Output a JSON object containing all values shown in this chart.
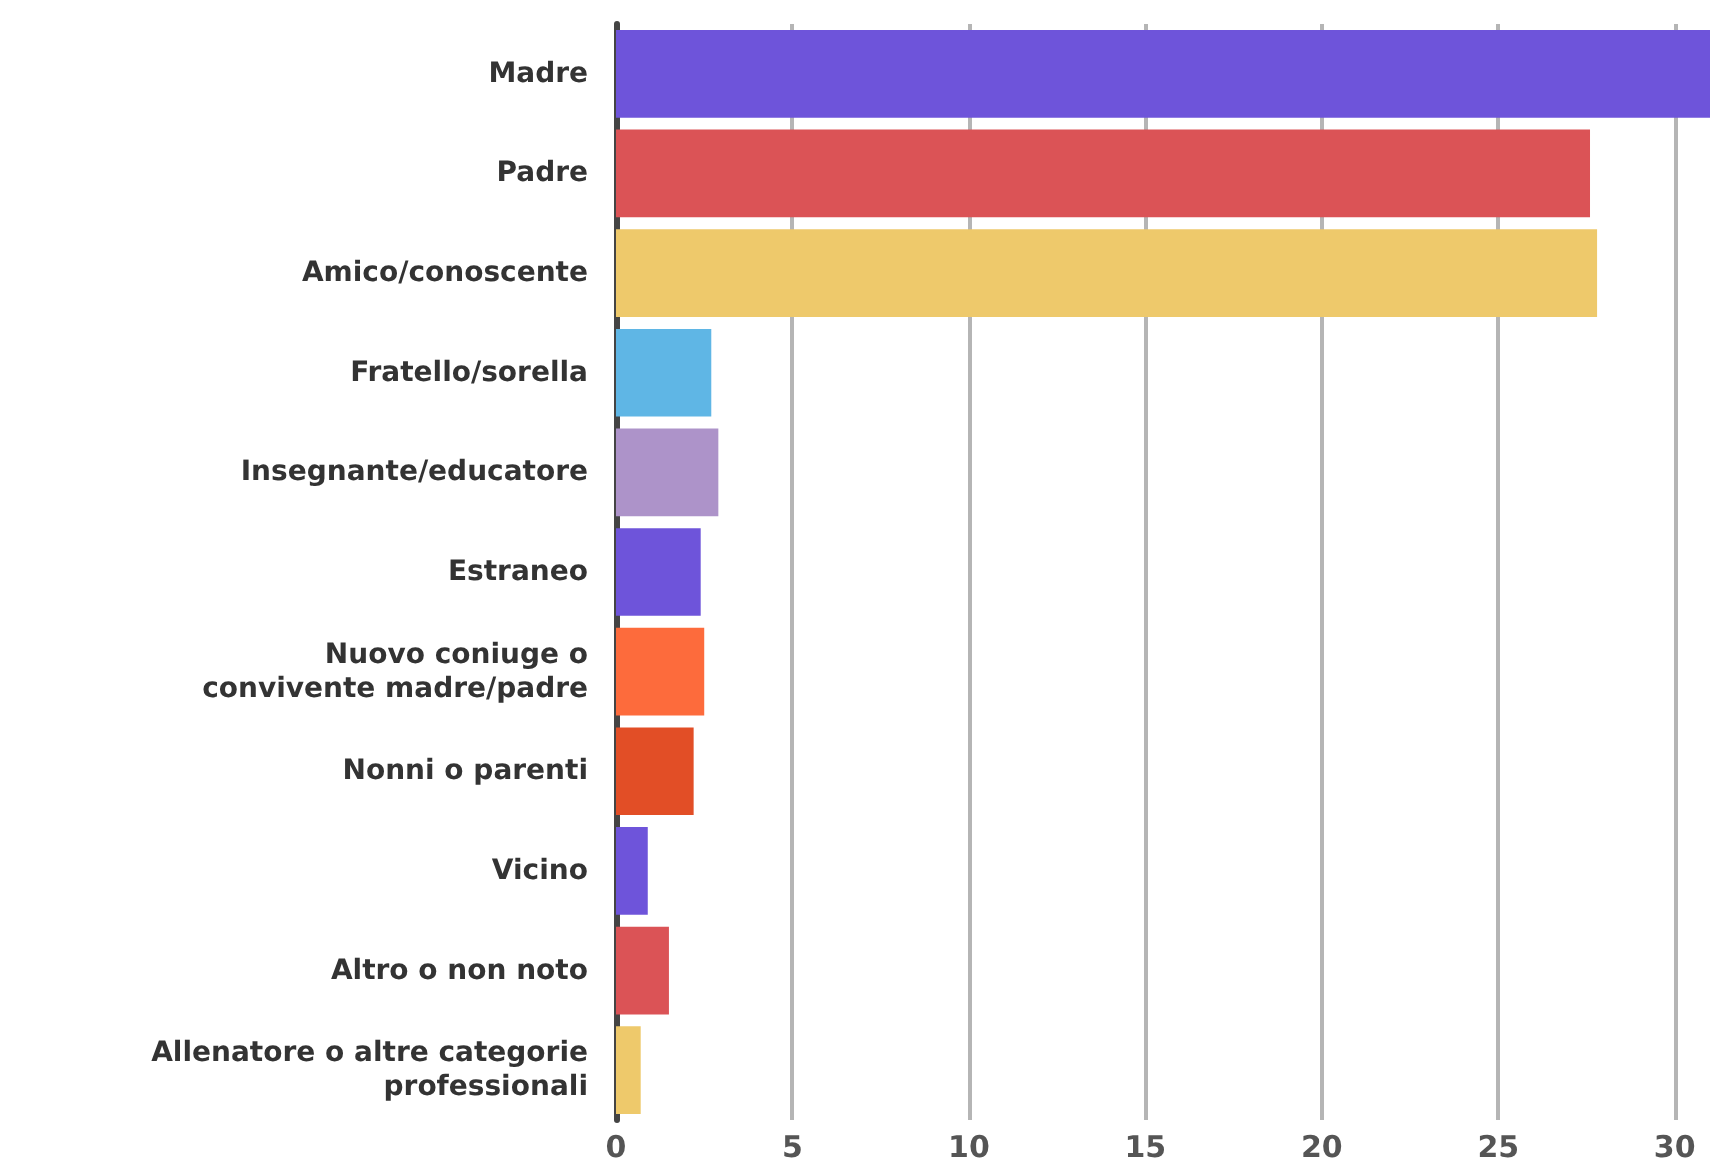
{
  "chart_data": {
    "type": "bar",
    "orientation": "horizontal",
    "categories": [
      "Madre",
      "Padre",
      "Amico/conoscente",
      "Fratello/sorella",
      "Insegnante/educatore",
      "Estraneo",
      "Nuovo coniuge o\nconvivente madre/padre",
      "Nonni o parenti",
      "Vicino",
      "Altro o non noto",
      "Allenatore o altre categorie\nprofessionali"
    ],
    "values": [
      31,
      27.6,
      27.8,
      2.7,
      2.9,
      2.4,
      2.5,
      2.2,
      0.9,
      1.5,
      0.7
    ],
    "colors": [
      "#6e54da",
      "#db5356",
      "#eec96b",
      "#5fb6e5",
      "#ad93c9",
      "#6e54da",
      "#fd6b3c",
      "#e24e26",
      "#6e54da",
      "#db5356",
      "#eec96b"
    ],
    "xlim": [
      0,
      31
    ],
    "xticks": [
      0,
      5,
      10,
      15,
      20,
      25,
      30
    ],
    "grid": "x"
  }
}
